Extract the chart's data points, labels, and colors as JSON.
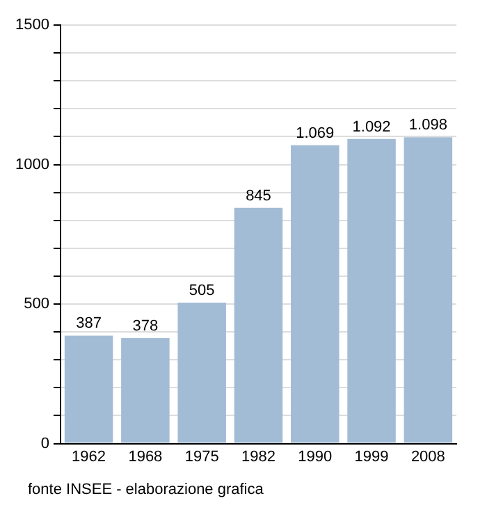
{
  "chart_data": {
    "type": "bar",
    "categories": [
      "1962",
      "1968",
      "1975",
      "1982",
      "1990",
      "1999",
      "2008"
    ],
    "values": [
      387,
      378,
      505,
      845,
      1069,
      1092,
      1098
    ],
    "value_labels": [
      "387",
      "378",
      "505",
      "845",
      "1.069",
      "1.092",
      "1.098"
    ],
    "color": "#a3bcd6",
    "ylim": [
      0,
      1500
    ],
    "yticks": [
      0,
      {
        "value": 100,
        "label": null
      },
      {
        "value": 200,
        "label": null
      },
      {
        "value": 300,
        "label": null
      },
      {
        "value": 400,
        "label": null
      },
      500,
      {
        "value": 600,
        "label": null
      },
      {
        "value": 700,
        "label": null
      },
      {
        "value": 800,
        "label": null
      },
      {
        "value": 900,
        "label": null
      },
      1000,
      {
        "value": 1100,
        "label": null
      },
      {
        "value": 1200,
        "label": null
      },
      {
        "value": 1300,
        "label": null
      },
      {
        "value": 1400,
        "label": null
      },
      1500
    ],
    "grid": "y",
    "annotations": [
      "fonte INSEE - elaborazione grafica"
    ]
  }
}
